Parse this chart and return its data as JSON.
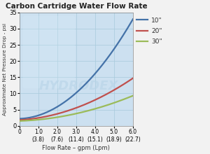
{
  "title": "Carbon Cartridge Water Flow Rate",
  "xlabel": "Flow Rate – gpm (Lpm)",
  "ylabel": "Approximate Net Pressure Drop - psi",
  "xlim": [
    0,
    6.0
  ],
  "ylim": [
    0,
    35
  ],
  "x_ticks": [
    0,
    1.0,
    2.0,
    3.0,
    4.0,
    5.0,
    6.0
  ],
  "x_tick_labels_top": [
    "0",
    "1.0",
    "2.0",
    "3.0",
    "4.0",
    "5.0",
    "6.0"
  ],
  "x_tick_labels_bot": [
    "",
    "(3.8)",
    "(7.6)",
    "(11.4)",
    "(15.1)",
    "(18.9)",
    "(22.7)"
  ],
  "y_ticks": [
    0,
    5,
    10,
    15,
    20,
    25,
    30,
    35
  ],
  "fig_bg_color": "#f2f2f2",
  "plot_bg_color": "#cce0f0",
  "grid_color": "#aaccdd",
  "line_10_color": "#4472a8",
  "line_20_color": "#c0504d",
  "line_30_color": "#9bbb59",
  "legend_labels": [
    "10\"",
    "20\"",
    "30\""
  ],
  "watermark": "HYDRODEX",
  "curve_10": [
    0.82,
    0.2,
    2.2
  ],
  "curve_20": [
    0.3,
    0.35,
    1.8
  ],
  "curve_30": [
    0.18,
    0.22,
    1.5
  ]
}
